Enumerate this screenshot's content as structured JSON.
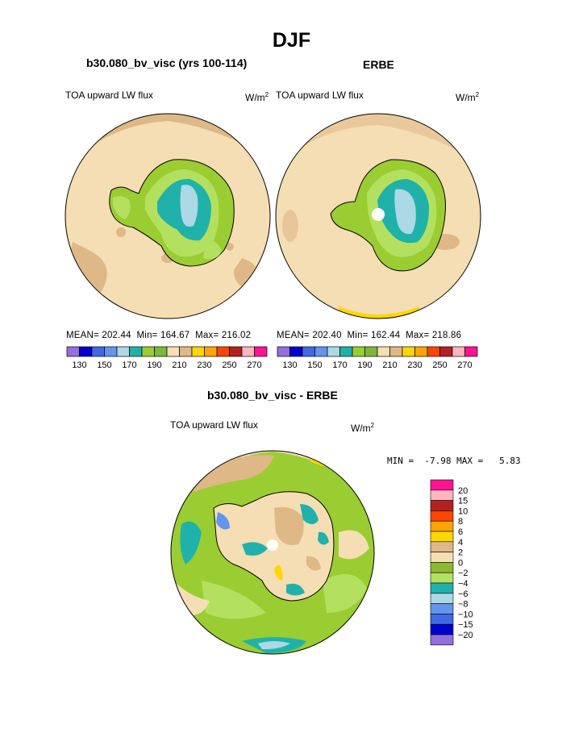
{
  "title": "DJF",
  "panels": [
    {
      "heading": "b30.080_bv_visc (yrs 100-114)",
      "field": "TOA upward LW flux",
      "units": "W/m",
      "units_sup": "2",
      "stats": {
        "mean_label": "MEAN=",
        "mean": "202.44",
        "min_label": "Min=",
        "min": "164.67",
        "max_label": "Max=",
        "max": "216.02"
      }
    },
    {
      "heading": "ERBE",
      "field": "TOA upward LW flux",
      "units": "W/m",
      "units_sup": "2",
      "stats": {
        "mean_label": "MEAN=",
        "mean": "202.40",
        "min_label": "Min=",
        "min": "162.44",
        "max_label": "Max=",
        "max": "218.86"
      }
    }
  ],
  "colorbar_top": {
    "colors": [
      "#9370db",
      "#0000cd",
      "#4169e1",
      "#6495ed",
      "#add8e6",
      "#20b2aa",
      "#9acd32",
      "#7cb83a",
      "#f5deb3",
      "#deb887",
      "#ffd700",
      "#ffa500",
      "#ff4500",
      "#b22222",
      "#ffb6c1",
      "#ff1493"
    ],
    "labels": [
      "130",
      "150",
      "170",
      "190",
      "210",
      "230",
      "250",
      "270"
    ]
  },
  "diff": {
    "heading": "b30.080_bv_visc - ERBE",
    "field": "TOA upward LW flux",
    "units": "W/m",
    "units_sup": "2",
    "min_label": "MIN =",
    "min": "-7.98",
    "max_label": "MAX =",
    "max": "5.83"
  },
  "colorbar_diff": {
    "colors": [
      "#ff1493",
      "#ffb6c1",
      "#b22222",
      "#ff4500",
      "#ffa500",
      "#ffd700",
      "#deb887",
      "#f5deb3",
      "#8db832",
      "#b4e060",
      "#20b2aa",
      "#add8e6",
      "#6495ed",
      "#4169e1",
      "#0000cd",
      "#9370db"
    ],
    "labels": [
      "20",
      "15",
      "10",
      "8",
      "6",
      "4",
      "2",
      "0",
      "−2",
      "−4",
      "−6",
      "−8",
      "−10",
      "−15",
      "−20"
    ]
  },
  "map_colors": {
    "ocean": "#f5deb3",
    "warm": "#deb887",
    "green1": "#9acd32",
    "green2": "#b4e060",
    "teal": "#20b2aa",
    "light_blue": "#add8e6",
    "yellow": "#ffd700",
    "white": "#ffffff"
  }
}
